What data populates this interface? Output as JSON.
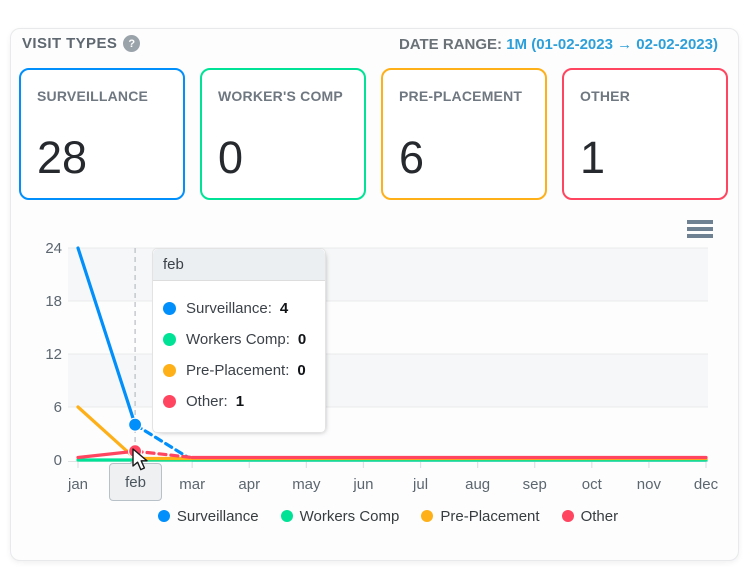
{
  "header": {
    "title": "VISIT TYPES",
    "help_icon": "?",
    "date_range_label": "DATE RANGE:",
    "date_range_value": "1M (01-02-2023 → 02-02-2023)"
  },
  "cards": [
    {
      "label": "SURVEILLANCE",
      "value": "28",
      "color": "#008FFB"
    },
    {
      "label": "WORKER'S COMP",
      "value": "0",
      "color": "#00E396"
    },
    {
      "label": "PRE-PLACEMENT",
      "value": "6",
      "color": "#FEB019"
    },
    {
      "label": "OTHER",
      "value": "1",
      "color": "#FF4560"
    }
  ],
  "chart_data": {
    "type": "line",
    "x": [
      "jan",
      "feb",
      "mar",
      "apr",
      "may",
      "jun",
      "jul",
      "aug",
      "sep",
      "oct",
      "nov",
      "dec"
    ],
    "series": [
      {
        "name": "Surveillance",
        "color": "#008FFB",
        "values": [
          24,
          4,
          0,
          0,
          0,
          0,
          0,
          0,
          0,
          0,
          0,
          0
        ]
      },
      {
        "name": "Workers Comp",
        "color": "#00E396",
        "values": [
          0,
          0,
          0,
          0,
          0,
          0,
          0,
          0,
          0,
          0,
          0,
          0
        ]
      },
      {
        "name": "Pre-Placement",
        "color": "#FEB019",
        "values": [
          6,
          0,
          0,
          0,
          0,
          0,
          0,
          0,
          0,
          0,
          0,
          0
        ]
      },
      {
        "name": "Other",
        "color": "#FF4560",
        "values": [
          0,
          1,
          0,
          0,
          0,
          0,
          0,
          0,
          0,
          0,
          0,
          0
        ]
      }
    ],
    "ylim": [
      0,
      24
    ],
    "yticks": [
      0,
      6,
      12,
      18,
      24
    ],
    "grid": true,
    "banded_rows": true,
    "legend_position": "bottom",
    "hover_index": 1
  },
  "crosshair": {
    "label": "feb"
  },
  "tooltip": {
    "title": "feb",
    "items": [
      {
        "label": "Surveillance:",
        "value": "4",
        "color": "#008FFB"
      },
      {
        "label": "Workers Comp:",
        "value": "0",
        "color": "#00E396"
      },
      {
        "label": "Pre-Placement:",
        "value": "0",
        "color": "#FEB019"
      },
      {
        "label": "Other:",
        "value": "1",
        "color": "#FF4560"
      }
    ]
  }
}
